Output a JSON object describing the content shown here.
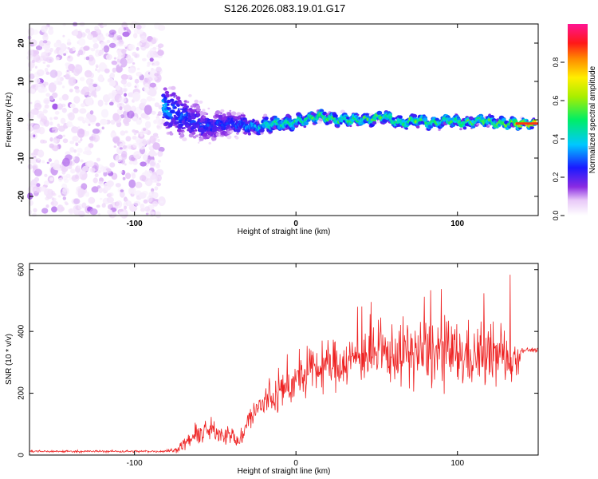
{
  "title": "S126.2026.083.19.01.G17",
  "chart_data": [
    {
      "type": "heatmap",
      "xlabel": "Height of straight line (km)",
      "ylabel": "Frequency (Hz)",
      "xlim": [
        -165,
        150
      ],
      "ylim": [
        -25,
        25
      ],
      "xticks": [
        -100,
        0,
        100
      ],
      "yticks": [
        -20,
        -10,
        0,
        10,
        20
      ],
      "colorbar": {
        "label": "Normalized spectral amplitude",
        "range": [
          0,
          1
        ],
        "ticks": [
          0.0,
          0.2,
          0.4,
          0.6,
          0.8
        ],
        "tick_labels": [
          "0.0",
          "0.2",
          "0.4",
          "0.6",
          "0.8"
        ]
      },
      "noise_region": {
        "x": [
          -165,
          -83
        ],
        "frequency_range": [
          -25,
          25
        ],
        "amplitude": [
          0.02,
          0.15
        ]
      },
      "signal_track": {
        "x": [
          -82,
          -75,
          -65,
          -55,
          -45,
          -35,
          -25,
          -15,
          -5,
          5,
          15,
          25,
          35,
          45,
          55,
          65,
          75,
          85,
          95,
          105,
          115,
          125,
          135,
          148
        ],
        "frequency": [
          3,
          2,
          0,
          -2,
          -1,
          -1,
          -2,
          -1,
          -1,
          0,
          1,
          0,
          0,
          0,
          1,
          -1,
          0,
          -1,
          0,
          -1,
          0,
          -1,
          -1,
          -1
        ],
        "amplitude": [
          0.45,
          0.35,
          0.3,
          0.3,
          0.3,
          0.35,
          0.45,
          0.55,
          0.6,
          0.6,
          0.62,
          0.6,
          0.6,
          0.62,
          0.6,
          0.6,
          0.62,
          0.6,
          0.6,
          0.62,
          0.6,
          0.65,
          0.7,
          0.9
        ],
        "spread_hz": [
          6,
          7,
          6,
          5,
          4,
          3,
          2,
          2,
          2,
          1.5,
          1.5,
          1.5,
          1.5,
          1.5,
          1.5,
          1.5,
          1.5,
          1.5,
          1.5,
          1.5,
          1.5,
          1.5,
          1.2,
          1
        ]
      }
    },
    {
      "type": "line",
      "xlabel": "Height of straight line (km)",
      "ylabel": "SNR (10 * v/v)",
      "xlim": [
        -165,
        150
      ],
      "ylim": [
        0,
        620
      ],
      "xticks": [
        -100,
        0,
        100
      ],
      "yticks": [
        0,
        200,
        400,
        600
      ],
      "series": [
        {
          "name": "SNR",
          "color": "#ee2222",
          "envelope_x": [
            -165,
            -85,
            -75,
            -68,
            -60,
            -50,
            -40,
            -35,
            -30,
            -20,
            -10,
            0,
            10,
            20,
            30,
            40,
            50,
            60,
            70,
            80,
            90,
            100,
            110,
            120,
            130,
            136,
            140,
            150
          ],
          "envelope_mean": [
            12,
            12,
            15,
            40,
            70,
            80,
            60,
            40,
            110,
            170,
            200,
            240,
            270,
            290,
            300,
            320,
            320,
            330,
            330,
            330,
            330,
            320,
            320,
            320,
            320,
            310,
            340,
            340
          ],
          "envelope_noise": [
            5,
            5,
            10,
            30,
            50,
            50,
            40,
            30,
            60,
            80,
            90,
            90,
            100,
            110,
            110,
            110,
            120,
            130,
            150,
            160,
            160,
            150,
            140,
            140,
            130,
            120,
            10,
            10
          ]
        }
      ]
    }
  ]
}
